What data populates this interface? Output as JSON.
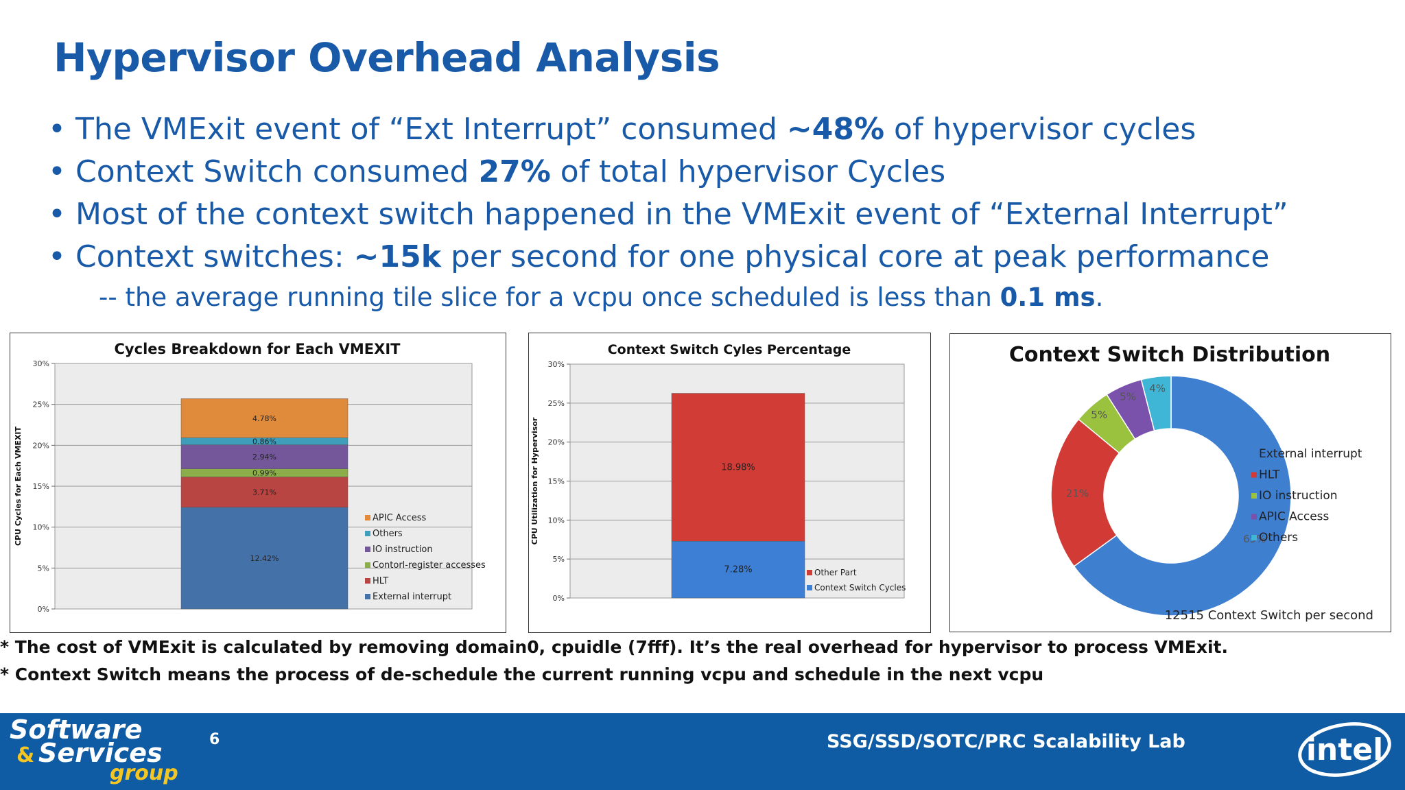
{
  "title": "Hypervisor Overhead Analysis",
  "bullets": [
    {
      "pre": "The VMExit event of “Ext Interrupt” consumed ",
      "bold": "~48%",
      "post": " of hypervisor cycles"
    },
    {
      "pre": "Context Switch consumed ",
      "bold": "27%",
      "post": " of total hypervisor Cycles"
    },
    {
      "pre": "Most of the context switch happened in the VMExit event of “External Interrupt”",
      "bold": "",
      "post": ""
    },
    {
      "pre": "Context switches:  ",
      "bold": "~15k",
      "post": " per second for one physical core at peak performance"
    }
  ],
  "subline": {
    "pre": "-- the average running tile slice for a vcpu once scheduled is less than ",
    "bold": "0.1 ms",
    "post": "."
  },
  "footnotes": [
    "* The cost of VMExit is calculated by removing  domain0, cpuidle (7fff). It’s the real overhead for hypervisor to process VMExit.",
    "* Context Switch means the process of de-schedule the current running vcpu and schedule in the next vcpu"
  ],
  "footer": {
    "logo_line1": "Software",
    "logo_amp": "&",
    "logo_line2": "Services",
    "logo_line3": "group",
    "page_number": "6",
    "lab": "SSG/SSD/SOTC/PRC Scalability Lab",
    "intel": "intel"
  },
  "chart_data": [
    {
      "type": "bar",
      "stacked": true,
      "title": "Cycles Breakdown for Each VMEXIT",
      "ylabel": "CPU Cycles for Each VMEXIT",
      "xlabel": "",
      "ylim": [
        0,
        30
      ],
      "yticks": [
        "0%",
        "5%",
        "10%",
        "15%",
        "20%",
        "25%",
        "30%"
      ],
      "legend_position": "right",
      "series": [
        {
          "name": "External interrupt",
          "value": 12.42,
          "label": "12.42%",
          "color": "#4472a8"
        },
        {
          "name": "HLT",
          "value": 3.71,
          "label": "3.71%",
          "color": "#b84542"
        },
        {
          "name": "Contorl-register accesses",
          "value": 0.99,
          "label": "0.99%",
          "color": "#8cae4a"
        },
        {
          "name": "IO instruction",
          "value": 2.94,
          "label": "2.94%",
          "color": "#73579a"
        },
        {
          "name": "Others",
          "value": 0.86,
          "label": "0.86%",
          "color": "#3f9fba"
        },
        {
          "name": "APIC Access",
          "value": 4.78,
          "label": "4.78%",
          "color": "#e08a3c"
        }
      ]
    },
    {
      "type": "bar",
      "stacked": true,
      "title": "Context Switch Cyles Percentage",
      "ylabel": "CPU Utilization for Hypervisor",
      "xlabel": "",
      "ylim": [
        0,
        30
      ],
      "yticks": [
        "0%",
        "5%",
        "10%",
        "15%",
        "20%",
        "25%",
        "30%"
      ],
      "legend_position": "bottom-right",
      "series": [
        {
          "name": "Context Switch Cycles",
          "value": 7.28,
          "label": "7.28%",
          "color": "#3c7fd4"
        },
        {
          "name": "Other Part",
          "value": 18.98,
          "label": "18.98%",
          "color": "#d23c36"
        }
      ]
    },
    {
      "type": "pie",
      "donut": true,
      "title": "Context Switch Distribution",
      "note": "12515 Context Switch per second",
      "legend_position": "right",
      "slices": [
        {
          "name": "External interrupt",
          "value": 65,
          "label": "65%",
          "color": "#3f7fd0"
        },
        {
          "name": "HLT",
          "value": 21,
          "label": "21%",
          "color": "#d23a36"
        },
        {
          "name": "IO instruction",
          "value": 5,
          "label": "5%",
          "color": "#9ac23f"
        },
        {
          "name": "APIC Access",
          "value": 5,
          "label": "5%",
          "color": "#7a52ab"
        },
        {
          "name": "Others",
          "value": 4,
          "label": "4%",
          "color": "#3fb6d6"
        }
      ]
    }
  ]
}
